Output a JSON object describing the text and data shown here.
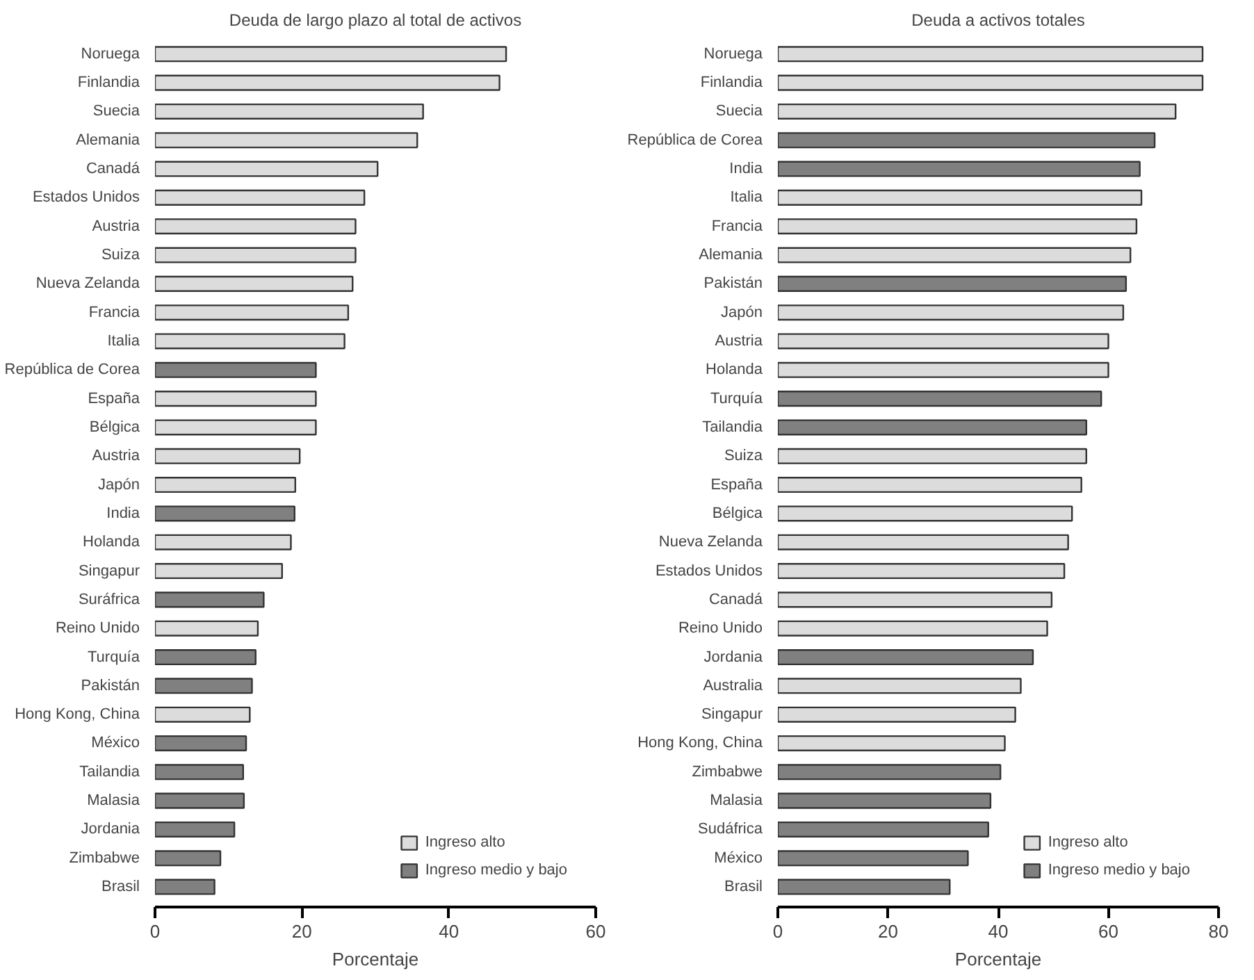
{
  "chart_data": [
    {
      "type": "bar",
      "orientation": "horizontal",
      "title": "Deuda de largo plazo al total de activos",
      "xlabel": "Porcentaje",
      "categories": [
        "Noruega",
        "Finlandia",
        "Suecia",
        "Alemania",
        "Canadá",
        "Estados Unidos",
        "Austria",
        "Suiza",
        "Nueva Zelanda",
        "Francia",
        "Italia",
        "República de Corea",
        "España",
        "Bélgica",
        "Austria",
        "Japón",
        "India",
        "Holanda",
        "Singapur",
        "Suráfrica",
        "Reino Unido",
        "Turquía",
        "Pakistán",
        "Hong Kong, China",
        "México",
        "Tailandia",
        "Malasia",
        "Jordania",
        "Zimbabwe",
        "Brasil"
      ],
      "series": [
        {
          "name": "Ingreso alto",
          "color": "#dcdcdc",
          "values": [
            47.8,
            46.9,
            36.5,
            35.7,
            30.3,
            28.5,
            27.3,
            27.3,
            26.9,
            26.3,
            25.8,
            null,
            21.9,
            21.9,
            19.7,
            19.1,
            null,
            18.5,
            17.3,
            null,
            14.0,
            null,
            null,
            12.9,
            null,
            null,
            null,
            null,
            null,
            null
          ]
        },
        {
          "name": "Ingreso medio y bajo",
          "color": "#808080",
          "values": [
            null,
            null,
            null,
            null,
            null,
            null,
            null,
            null,
            null,
            null,
            null,
            21.9,
            null,
            null,
            null,
            null,
            19.0,
            null,
            null,
            14.8,
            null,
            13.7,
            13.2,
            null,
            12.4,
            12.0,
            12.1,
            10.8,
            8.9,
            8.1
          ]
        }
      ],
      "xlim": [
        0,
        60
      ],
      "xticks": [
        0,
        20,
        40,
        60
      ],
      "legend": "bottom right",
      "grid": false
    },
    {
      "type": "bar",
      "orientation": "horizontal",
      "title": "Deuda a activos totales",
      "xlabel": "Porcentaje",
      "categories": [
        "Noruega",
        "Finlandia",
        "Suecia",
        "República de Corea",
        "India",
        "Italia",
        "Francia",
        "Alemania",
        "Pakistán",
        "Japón",
        "Austria",
        "Holanda",
        "Turquía",
        "Tailandia",
        "Suiza",
        "España",
        "Bélgica",
        "Nueva Zelanda",
        "Estados Unidos",
        "Canadá",
        "Reino Unido",
        "Jordania",
        "Australia",
        "Singapur",
        "Hong Kong, China",
        "Zimbabwe",
        "Malasia",
        "Sudáfrica",
        "México",
        "Brasil"
      ],
      "series": [
        {
          "name": "Ingreso alto",
          "color": "#dcdcdc",
          "values": [
            77.1,
            77.1,
            72.2,
            null,
            null,
            66.0,
            65.1,
            64.0,
            null,
            62.7,
            60.0,
            60.0,
            null,
            null,
            56.0,
            55.1,
            53.4,
            52.7,
            52.0,
            49.7,
            48.9,
            null,
            44.1,
            43.1,
            41.2,
            null,
            null,
            null,
            null,
            null
          ]
        },
        {
          "name": "Ingreso medio y bajo",
          "color": "#808080",
          "values": [
            null,
            null,
            null,
            68.4,
            65.7,
            null,
            null,
            null,
            63.2,
            null,
            null,
            null,
            58.7,
            56.0,
            null,
            null,
            null,
            null,
            null,
            null,
            null,
            46.3,
            null,
            null,
            null,
            40.4,
            38.6,
            38.2,
            34.5,
            31.2
          ]
        }
      ],
      "xlim": [
        0,
        80
      ],
      "xticks": [
        0,
        20,
        40,
        60,
        80
      ],
      "legend": "bottom right",
      "grid": false
    }
  ]
}
